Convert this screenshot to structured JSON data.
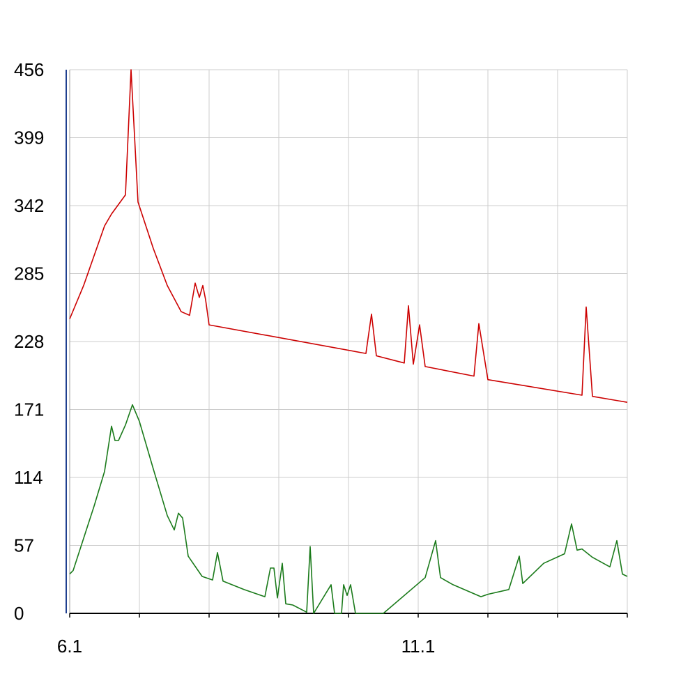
{
  "chart_data": {
    "type": "line",
    "title": "",
    "xlabel": "",
    "ylabel": "",
    "xlim": [
      6.1,
      14.1
    ],
    "ylim": [
      0,
      456
    ],
    "x_ticks": [
      6.1,
      7.1,
      8.1,
      9.1,
      10.1,
      11.1,
      12.1,
      13.1,
      14.1
    ],
    "x_tick_labels": [
      "6.1",
      "",
      "",
      "",
      "",
      "11.1",
      "",
      "",
      ""
    ],
    "y_ticks": [
      0,
      57,
      114,
      171,
      228,
      285,
      342,
      399,
      456
    ],
    "y_tick_labels": [
      "0",
      "57",
      "114",
      "171",
      "228",
      "285",
      "342",
      "399",
      "456"
    ],
    "grid": true,
    "legend": "none",
    "series": [
      {
        "color": "#cc0000",
        "points": [
          [
            6.1,
            247
          ],
          [
            6.3,
            275
          ],
          [
            6.6,
            325
          ],
          [
            6.7,
            335
          ],
          [
            6.9,
            351
          ],
          [
            6.98,
            456
          ],
          [
            7.08,
            345
          ],
          [
            7.3,
            306
          ],
          [
            7.5,
            275
          ],
          [
            7.7,
            253
          ],
          [
            7.82,
            250
          ],
          [
            7.9,
            277
          ],
          [
            7.96,
            265
          ],
          [
            8.01,
            275
          ],
          [
            8.05,
            263
          ],
          [
            8.1,
            242
          ],
          [
            10.35,
            218
          ],
          [
            10.43,
            251
          ],
          [
            10.5,
            216
          ],
          [
            10.9,
            210
          ],
          [
            10.96,
            258
          ],
          [
            11.03,
            209
          ],
          [
            11.12,
            242
          ],
          [
            11.2,
            207
          ],
          [
            11.9,
            199
          ],
          [
            11.97,
            243
          ],
          [
            12.1,
            196
          ],
          [
            13.45,
            183
          ],
          [
            13.51,
            257
          ],
          [
            13.6,
            182
          ],
          [
            14.1,
            177
          ]
        ]
      },
      {
        "color": "#1a7a1a",
        "points": [
          [
            6.1,
            33
          ],
          [
            6.15,
            36
          ],
          [
            6.3,
            63
          ],
          [
            6.45,
            90
          ],
          [
            6.6,
            119
          ],
          [
            6.7,
            157
          ],
          [
            6.75,
            145
          ],
          [
            6.8,
            145
          ],
          [
            6.9,
            158
          ],
          [
            7.0,
            175
          ],
          [
            7.1,
            161
          ],
          [
            7.3,
            121
          ],
          [
            7.5,
            82
          ],
          [
            7.6,
            70
          ],
          [
            7.66,
            84
          ],
          [
            7.72,
            80
          ],
          [
            7.8,
            48
          ],
          [
            8.0,
            31
          ],
          [
            8.15,
            28
          ],
          [
            8.22,
            51
          ],
          [
            8.3,
            27
          ],
          [
            8.6,
            20
          ],
          [
            8.9,
            14
          ],
          [
            8.98,
            38
          ],
          [
            9.03,
            38
          ],
          [
            9.08,
            13
          ],
          [
            9.15,
            42
          ],
          [
            9.2,
            8
          ],
          [
            9.3,
            7
          ],
          [
            9.5,
            1
          ],
          [
            9.55,
            56
          ],
          [
            9.6,
            0
          ],
          [
            9.85,
            24
          ],
          [
            9.9,
            0
          ],
          [
            10.0,
            0
          ],
          [
            10.03,
            24
          ],
          [
            10.08,
            15
          ],
          [
            10.13,
            24
          ],
          [
            10.2,
            0
          ],
          [
            10.6,
            0
          ],
          [
            11.2,
            30
          ],
          [
            11.35,
            61
          ],
          [
            11.42,
            30
          ],
          [
            11.6,
            24
          ],
          [
            12.0,
            14
          ],
          [
            12.1,
            16
          ],
          [
            12.4,
            20
          ],
          [
            12.55,
            48
          ],
          [
            12.6,
            25
          ],
          [
            12.9,
            42
          ],
          [
            13.2,
            50
          ],
          [
            13.3,
            75
          ],
          [
            13.38,
            53
          ],
          [
            13.45,
            54
          ],
          [
            13.6,
            47
          ],
          [
            13.85,
            39
          ],
          [
            13.95,
            61
          ],
          [
            14.03,
            33
          ],
          [
            14.1,
            31
          ]
        ]
      }
    ]
  }
}
